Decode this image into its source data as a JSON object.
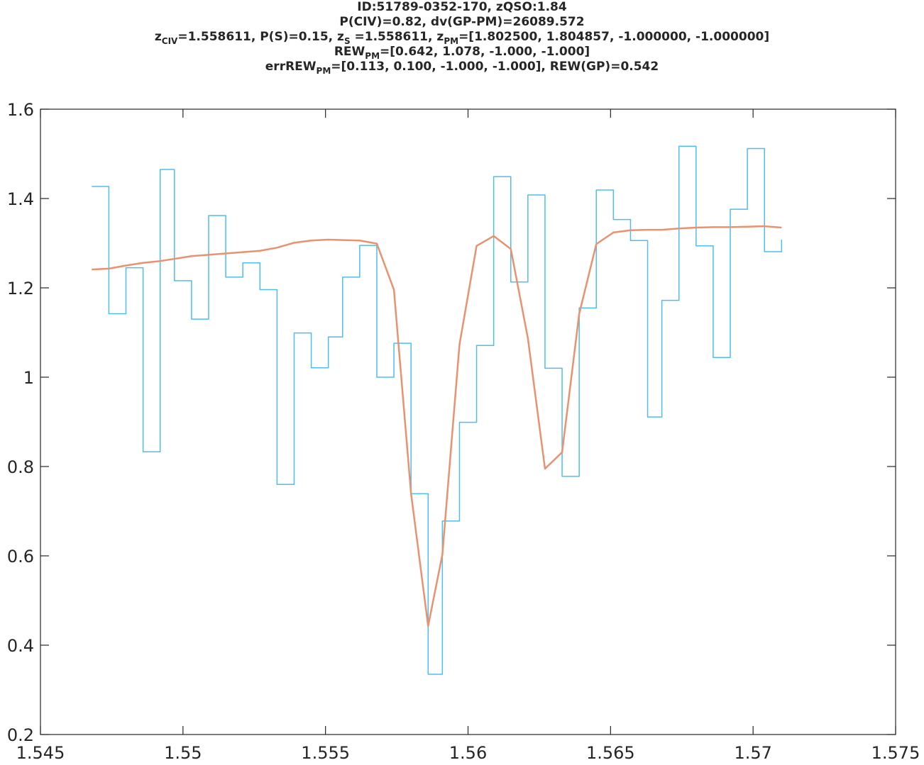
{
  "title": {
    "line1": "ID:51789-0352-170, zQSO:1.84",
    "line2": "P(CIV)=0.82, dv(GP-PM)=26089.572",
    "line3": {
      "z_civ_base": "z",
      "z_civ_sub": "CIV",
      "z_civ_text": "=1.558611, P(S)=0.15, ",
      "z_s_base": "z",
      "z_s_sub": "S",
      "z_s_text": " =1.558611, ",
      "z_pm_base": "z",
      "z_pm_sub": "PM",
      "z_pm_text": "=[1.802500, 1.804857, -1.000000, -1.000000]"
    },
    "line4": {
      "base": "REW",
      "sub": "PM",
      "text": "=[0.642, 1.078, -1.000, -1.000]"
    },
    "line5": {
      "base": "errREW",
      "sub": "PM",
      "text": "=[0.113, 0.100, -1.000, -1.000], REW(GP)=0.542"
    }
  },
  "chart_data": {
    "type": "line",
    "xlim": [
      1.545,
      1.575
    ],
    "ylim": [
      0.2,
      1.6
    ],
    "x_ticks": [
      "1.545",
      "1.55",
      "1.555",
      "1.56",
      "1.565",
      "1.57",
      "1.575"
    ],
    "x_tick_values": [
      1.545,
      1.55,
      1.555,
      1.56,
      1.565,
      1.57,
      1.575
    ],
    "y_ticks": [
      "0.2",
      "0.4",
      "0.6",
      "0.8",
      "1",
      "1.2",
      "1.4",
      "1.6"
    ],
    "y_tick_values": [
      0.2,
      0.4,
      0.6,
      0.8,
      1.0,
      1.2,
      1.4,
      1.6
    ],
    "grid": false,
    "series": [
      {
        "style": "stairs",
        "color": "#4DBEEE",
        "x": [
          1.5468,
          1.5474,
          1.548,
          1.5486,
          1.5492,
          1.5497,
          1.5503,
          1.5509,
          1.5515,
          1.5521,
          1.5527,
          1.5533,
          1.5539,
          1.5545,
          1.5551,
          1.5556,
          1.5562,
          1.5568,
          1.5574,
          1.558,
          1.5586,
          1.5591,
          1.5597,
          1.5603,
          1.5609,
          1.5615,
          1.5621,
          1.5627,
          1.5633,
          1.5639,
          1.5645,
          1.5651,
          1.5657,
          1.5663,
          1.5668,
          1.5674,
          1.568,
          1.5686,
          1.5692,
          1.5698,
          1.5704,
          1.571
        ],
        "y": [
          1.427,
          1.142,
          1.245,
          0.833,
          1.465,
          1.216,
          1.13,
          1.362,
          1.224,
          1.256,
          1.196,
          0.76,
          1.099,
          1.021,
          1.09,
          1.224,
          1.295,
          1.0,
          1.076,
          0.739,
          0.335,
          0.678,
          0.899,
          1.071,
          1.449,
          1.213,
          1.408,
          1.02,
          0.778,
          1.155,
          1.419,
          1.353,
          1.306,
          0.911,
          1.172,
          1.517,
          1.294,
          1.044,
          1.376,
          1.512,
          1.281,
          1.308
        ]
      },
      {
        "style": "line",
        "color": "#E8926F",
        "x": [
          1.5468,
          1.5474,
          1.548,
          1.5486,
          1.5492,
          1.5497,
          1.5503,
          1.5509,
          1.5515,
          1.5521,
          1.5527,
          1.5533,
          1.5539,
          1.5545,
          1.5551,
          1.5556,
          1.5562,
          1.5568,
          1.5574,
          1.558,
          1.5586,
          1.5591,
          1.5597,
          1.5603,
          1.5609,
          1.5615,
          1.5621,
          1.5627,
          1.5633,
          1.5639,
          1.5645,
          1.5651,
          1.5657,
          1.5663,
          1.5668,
          1.5674,
          1.568,
          1.5686,
          1.5692,
          1.5698,
          1.5704,
          1.571
        ],
        "y": [
          1.241,
          1.243,
          1.25,
          1.256,
          1.26,
          1.265,
          1.271,
          1.274,
          1.277,
          1.28,
          1.283,
          1.29,
          1.301,
          1.306,
          1.308,
          1.307,
          1.306,
          1.299,
          1.196,
          0.74,
          0.443,
          0.603,
          1.073,
          1.294,
          1.316,
          1.287,
          1.087,
          0.795,
          0.832,
          1.142,
          1.298,
          1.324,
          1.329,
          1.33,
          1.33,
          1.333,
          1.335,
          1.336,
          1.336,
          1.337,
          1.338,
          1.335
        ]
      }
    ]
  }
}
